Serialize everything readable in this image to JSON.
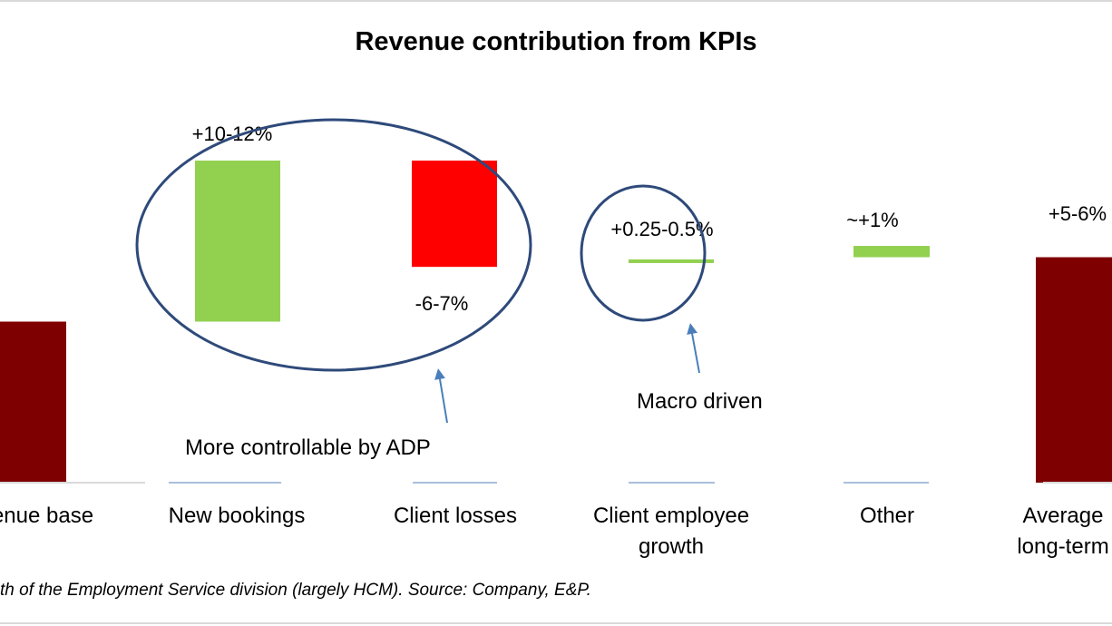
{
  "chart_data": {
    "type": "bar",
    "subtype": "waterfall",
    "title": "Revenue contribution from KPIs",
    "categories": [
      [
        "enue base"
      ],
      [
        "New bookings"
      ],
      [
        "Client losses"
      ],
      [
        "Client employee",
        "growth"
      ],
      [
        "Other"
      ],
      [
        "Average",
        "long-term"
      ]
    ],
    "data_labels": [
      "",
      "+10-12%",
      "-6-7%",
      "+0.25-0.5%",
      "~+1%",
      "+5-6%"
    ],
    "ylim": [
      0,
      100
    ],
    "bars": [
      {
        "start": 0,
        "end": 50,
        "color": "#7f0000"
      },
      {
        "start": 50,
        "end": 100,
        "color": "#92d050"
      },
      {
        "start": 67,
        "end": 100,
        "color": "#ff0000"
      },
      {
        "start": 69,
        "end": 68.5,
        "color": "#92d050"
      },
      {
        "start": 70,
        "end": 73.5,
        "color": "#92d050"
      },
      {
        "start": 0,
        "end": 70,
        "color": "#7f0000"
      }
    ],
    "annotations": {
      "controllable": "More controllable by ADP",
      "macro": "Macro driven"
    },
    "grid": false,
    "legend": "none",
    "source_note": "th of the Employment Service division (largely HCM). Source: Company, E&P."
  },
  "colors": {
    "base": "#7f0000",
    "increase": "#92d050",
    "decrease": "#ff0000",
    "annotation": "#2e4a7a",
    "arrow": "#4a7ebb"
  }
}
